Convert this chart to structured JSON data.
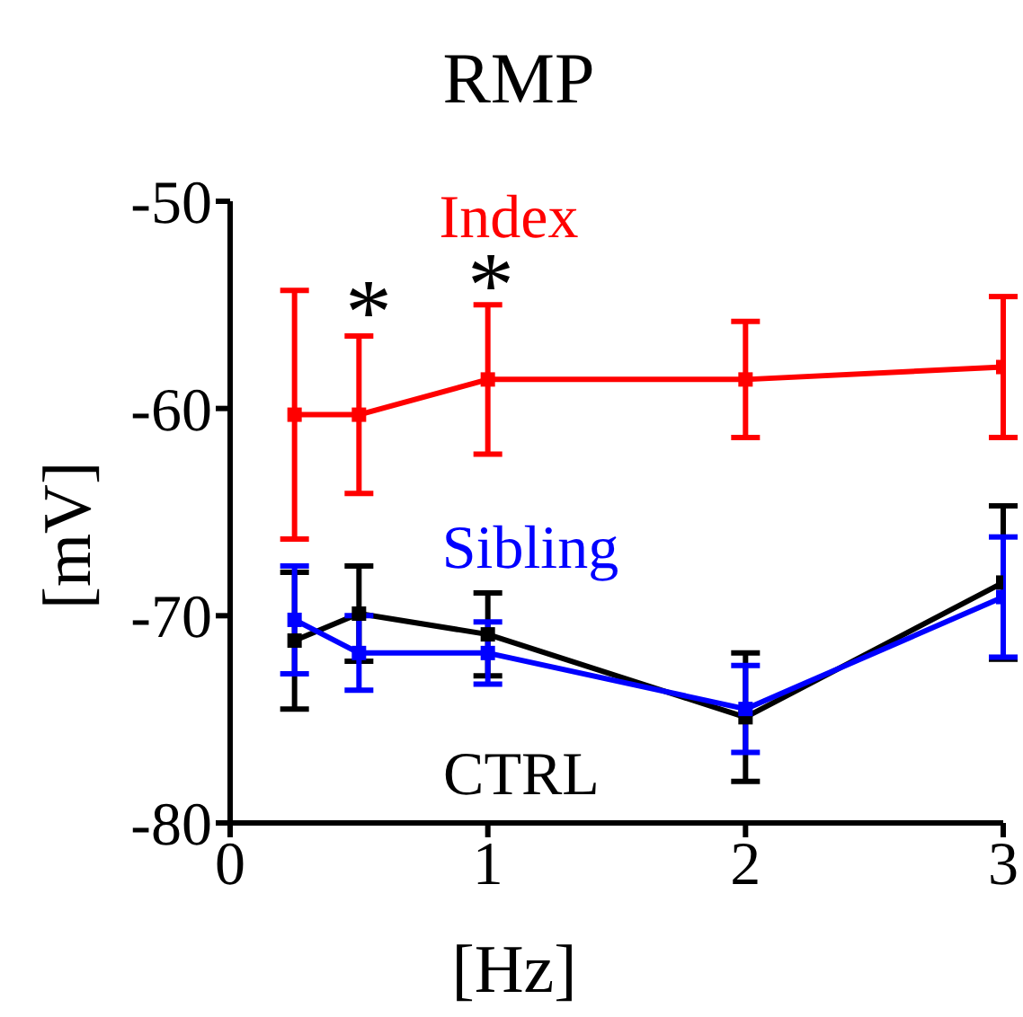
{
  "chart_data": {
    "type": "line",
    "title": "RMP",
    "xlabel": "[Hz]",
    "ylabel": "[mV]",
    "x": [
      0.25,
      0.5,
      1,
      2,
      3
    ],
    "series": [
      {
        "name": "Index",
        "color": "#ff0000",
        "values": [
          -60.3,
          -60.3,
          -58.6,
          -58.6,
          -58.0
        ],
        "errors": [
          6,
          3.8,
          3.6,
          2.8,
          3.4
        ]
      },
      {
        "name": "Sibling",
        "color": "#0000ff",
        "values": [
          -70.2,
          -71.8,
          -71.8,
          -74.5,
          -69.1
        ],
        "errors": [
          2.6,
          1.8,
          1.5,
          2.1,
          2.9
        ]
      },
      {
        "name": "CTRL",
        "color": "#000000",
        "values": [
          -71.2,
          -69.9,
          -70.9,
          -74.9,
          -68.4
        ],
        "errors": [
          3.3,
          2.3,
          2,
          3.1,
          3.7
        ]
      }
    ],
    "annotations": [
      "*",
      "*"
    ],
    "xlim": [
      0,
      3
    ],
    "xticks": [
      0,
      1,
      2,
      3
    ],
    "ylim": [
      -80,
      -50
    ],
    "yticks": [
      -80,
      -70,
      -60,
      -50
    ],
    "grid": false,
    "legend": false,
    "marker": "square",
    "line_style": "solid"
  }
}
